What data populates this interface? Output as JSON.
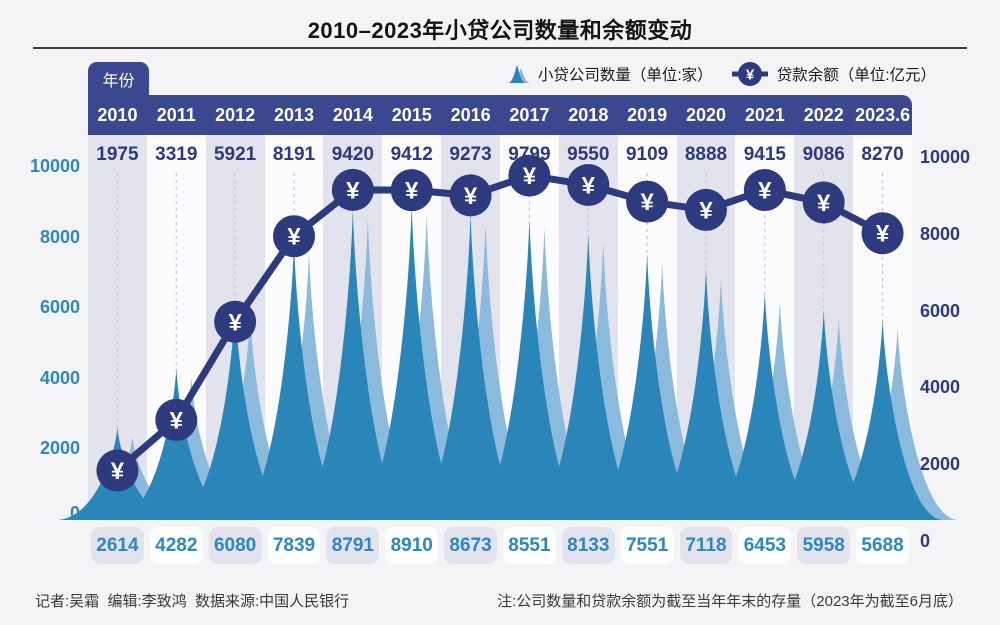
{
  "title": "2010–2023年小贷公司数量和余额变动",
  "year_tab_label": "年份",
  "legend": {
    "companies_label": "小贷公司数量（单位:家）",
    "balance_label": "贷款余额（单位:亿元）",
    "yuan_symbol": "¥"
  },
  "axes": {
    "left_ticks": [
      10000,
      8000,
      6000,
      4000,
      2000,
      0
    ],
    "right_ticks": [
      10000,
      8000,
      6000,
      4000,
      2000,
      0
    ]
  },
  "footer": {
    "left": "记者:吴霜  编辑:李致鸿  数据来源:中国人民银行",
    "right": "注:公司数量和贷款余额为截至当年年末的存量（2023年为截至6月底）"
  },
  "colors": {
    "navy": "#2d3a7d",
    "band_navy": "#3b4890",
    "spike_dark": "#2a85b9",
    "spike_light": "#8cbadd",
    "axis_blue": "#2e86c3",
    "lavender_col": "#e3e3ee",
    "white_col": "#fcfcfe",
    "count_box_white": "#ffffff",
    "dash": "#c7c7d2"
  },
  "chart_data": {
    "type": "combo (spike-area + line)",
    "categories": [
      "2010",
      "2011",
      "2012",
      "2013",
      "2014",
      "2015",
      "2016",
      "2017",
      "2018",
      "2019",
      "2020",
      "2021",
      "2022",
      "2023.6"
    ],
    "series": [
      {
        "name": "小贷公司数量",
        "unit": "家",
        "type": "spike-area",
        "axis": "left",
        "values": [
          2614,
          4282,
          6080,
          7839,
          8791,
          8910,
          8673,
          8551,
          8133,
          7551,
          7118,
          6453,
          5958,
          5688
        ]
      },
      {
        "name": "贷款余额",
        "unit": "亿元",
        "type": "line",
        "axis": "right",
        "values": [
          1975,
          3319,
          5921,
          8191,
          9420,
          9412,
          9273,
          9799,
          9550,
          9109,
          8888,
          9415,
          9086,
          8270
        ]
      }
    ],
    "ylim": [
      0,
      10000
    ],
    "grid": "dashed vertical per category",
    "legend_position": "top-right"
  }
}
